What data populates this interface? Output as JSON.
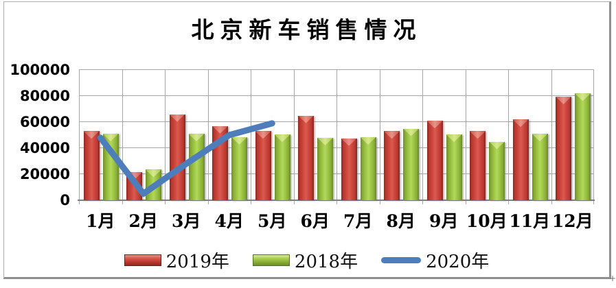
{
  "window": {
    "resize_handle": "+"
  },
  "chart_data": {
    "type": "bar",
    "title": "北京新车销售情况",
    "categories": [
      "1月",
      "2月",
      "3月",
      "4月",
      "5月",
      "6月",
      "7月",
      "8月",
      "9月",
      "10月",
      "11月",
      "12月"
    ],
    "series": [
      {
        "name": "2019年",
        "type": "bar",
        "color": "#C23B33",
        "values": [
          53000,
          21500,
          66000,
          57000,
          53000,
          65000,
          47500,
          53000,
          61000,
          53000,
          62000,
          79500
        ]
      },
      {
        "name": "2018年",
        "type": "bar",
        "color": "#9CC83F",
        "values": [
          51000,
          23500,
          51000,
          48500,
          50500,
          48000,
          48500,
          55000,
          50500,
          45000,
          51000,
          82000
        ]
      },
      {
        "name": "2020年",
        "type": "line",
        "color": "#4D7DBB",
        "values": [
          48000,
          5000,
          28000,
          50000,
          59000,
          null,
          null,
          null,
          null,
          null,
          null,
          null
        ]
      }
    ],
    "xlabel": "",
    "ylabel": "",
    "ylim": [
      0,
      100000
    ],
    "yticks": [
      0,
      20000,
      40000,
      60000,
      80000,
      100000
    ],
    "ytick_labels": [
      "0",
      "20000",
      "40000",
      "60000",
      "80000",
      "100000"
    ],
    "grid": "horizontal-and-vertical",
    "legend_position": "bottom",
    "colors": {
      "grid": "#a6a6a6",
      "axis": "#7f7f7f",
      "frame_border": "#8f8f8f"
    }
  }
}
